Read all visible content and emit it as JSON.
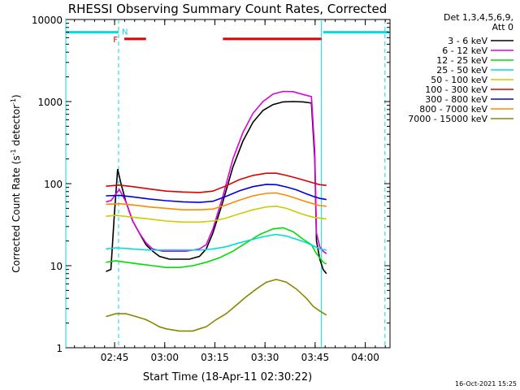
{
  "chart_data": {
    "type": "line",
    "title": "RHESSI Observing Summary Count Rates, Corrected",
    "xlabel": "Start Time (18-Apr-11 02:30:22)",
    "ylabel_main": "Corrected Count Rate (s",
    "ylabel_sup1": "-1",
    "ylabel_mid": " detector",
    "ylabel_sup2": "-1",
    "ylabel_end": ")",
    "y_scale": "log",
    "ylim": [
      1,
      10000
    ],
    "xlim_minutes": [
      0,
      97
    ],
    "y_ticks": [
      {
        "v": 1,
        "label": "1"
      },
      {
        "v": 10,
        "label": "10"
      },
      {
        "v": 100,
        "label": "100"
      },
      {
        "v": 1000,
        "label": "1000"
      },
      {
        "v": 10000,
        "label": "10000"
      }
    ],
    "x_ticks": [
      {
        "m": 14.6,
        "label": "02:45"
      },
      {
        "m": 29.6,
        "label": "03:00"
      },
      {
        "m": 44.6,
        "label": "03:15"
      },
      {
        "m": 59.6,
        "label": "03:30"
      },
      {
        "m": 74.6,
        "label": "03:45"
      },
      {
        "m": 89.6,
        "label": "04:00"
      }
    ],
    "legend": {
      "header1": "Det 1,3,4,5,6,9,",
      "header2": "Att 0",
      "placement": "right"
    },
    "series": [
      {
        "name": "3 - 6 keV",
        "color": "#000000",
        "points": [
          [
            12,
            8.5
          ],
          [
            13.5,
            9
          ],
          [
            14.5,
            40
          ],
          [
            15.5,
            150
          ],
          [
            16.5,
            100
          ],
          [
            18,
            60
          ],
          [
            20,
            35
          ],
          [
            22,
            25
          ],
          [
            24,
            18
          ],
          [
            26,
            15
          ],
          [
            28,
            13
          ],
          [
            31,
            12
          ],
          [
            34,
            12
          ],
          [
            37,
            12
          ],
          [
            40,
            13
          ],
          [
            42,
            16
          ],
          [
            44,
            25
          ],
          [
            47,
            60
          ],
          [
            50,
            160
          ],
          [
            53,
            330
          ],
          [
            56,
            560
          ],
          [
            59,
            780
          ],
          [
            62,
            920
          ],
          [
            65,
            990
          ],
          [
            68,
            1000
          ],
          [
            71,
            990
          ],
          [
            73.5,
            960
          ],
          [
            74.5,
            200
          ],
          [
            75,
            20
          ],
          [
            76,
            12
          ],
          [
            77,
            9
          ],
          [
            78,
            8
          ]
        ]
      },
      {
        "name": "6 - 12 keV",
        "color": "#dd00dd",
        "points": [
          [
            12,
            60
          ],
          [
            13.5,
            62
          ],
          [
            14.5,
            70
          ],
          [
            16,
            85
          ],
          [
            18,
            60
          ],
          [
            20,
            35
          ],
          [
            22,
            25
          ],
          [
            24,
            19
          ],
          [
            26,
            16
          ],
          [
            29,
            15
          ],
          [
            32,
            15
          ],
          [
            36,
            15
          ],
          [
            40,
            16
          ],
          [
            42,
            18
          ],
          [
            44,
            28
          ],
          [
            47,
            70
          ],
          [
            50,
            200
          ],
          [
            53,
            420
          ],
          [
            56,
            720
          ],
          [
            59,
            1000
          ],
          [
            62,
            1230
          ],
          [
            65,
            1330
          ],
          [
            68,
            1320
          ],
          [
            71,
            1220
          ],
          [
            73.5,
            1150
          ],
          [
            74.5,
            250
          ],
          [
            75,
            25
          ],
          [
            76,
            17
          ],
          [
            77,
            15
          ],
          [
            78,
            14
          ]
        ]
      },
      {
        "name": "12 - 25 keV",
        "color": "#00dd00",
        "points": [
          [
            12,
            11
          ],
          [
            15,
            11.5
          ],
          [
            18,
            11
          ],
          [
            22,
            10.5
          ],
          [
            26,
            10
          ],
          [
            30,
            9.5
          ],
          [
            34,
            9.5
          ],
          [
            38,
            10
          ],
          [
            42,
            11
          ],
          [
            46,
            12.5
          ],
          [
            50,
            15
          ],
          [
            54,
            19
          ],
          [
            58,
            24
          ],
          [
            62,
            28
          ],
          [
            65,
            29
          ],
          [
            68,
            26
          ],
          [
            71,
            21
          ],
          [
            73.5,
            18
          ],
          [
            75,
            14
          ],
          [
            77,
            11
          ],
          [
            78,
            10.5
          ]
        ]
      },
      {
        "name": "25 - 50 keV",
        "color": "#00dddd",
        "points": [
          [
            12,
            16
          ],
          [
            15,
            16.5
          ],
          [
            20,
            16
          ],
          [
            25,
            15.5
          ],
          [
            30,
            15.5
          ],
          [
            35,
            15.5
          ],
          [
            40,
            15.5
          ],
          [
            44,
            16
          ],
          [
            48,
            17
          ],
          [
            52,
            19
          ],
          [
            56,
            21
          ],
          [
            60,
            23
          ],
          [
            63,
            24
          ],
          [
            66,
            23
          ],
          [
            69,
            21
          ],
          [
            72,
            19
          ],
          [
            74,
            17.5
          ],
          [
            76,
            16
          ],
          [
            78,
            15.5
          ]
        ]
      },
      {
        "name": "50 - 100 keV",
        "color": "#cccc00",
        "points": [
          [
            12,
            40
          ],
          [
            15,
            41
          ],
          [
            20,
            39
          ],
          [
            25,
            37
          ],
          [
            30,
            35
          ],
          [
            35,
            34
          ],
          [
            40,
            34
          ],
          [
            44,
            35
          ],
          [
            48,
            38
          ],
          [
            52,
            43
          ],
          [
            56,
            48
          ],
          [
            60,
            52
          ],
          [
            63,
            53
          ],
          [
            66,
            50
          ],
          [
            69,
            45
          ],
          [
            72,
            41
          ],
          [
            74,
            39
          ],
          [
            76,
            38
          ],
          [
            78,
            37
          ]
        ]
      },
      {
        "name": "100 - 300 keV",
        "color": "#dd0000",
        "points": [
          [
            12,
            93
          ],
          [
            16,
            96
          ],
          [
            20,
            92
          ],
          [
            25,
            86
          ],
          [
            30,
            81
          ],
          [
            35,
            79
          ],
          [
            40,
            78
          ],
          [
            44,
            81
          ],
          [
            48,
            94
          ],
          [
            52,
            112
          ],
          [
            56,
            126
          ],
          [
            60,
            134
          ],
          [
            63,
            134
          ],
          [
            66,
            126
          ],
          [
            69,
            117
          ],
          [
            72,
            108
          ],
          [
            74,
            102
          ],
          [
            76,
            97
          ],
          [
            78,
            95
          ]
        ]
      },
      {
        "name": "300 - 800 keV",
        "color": "#0000dd",
        "points": [
          [
            12,
            71
          ],
          [
            16,
            72
          ],
          [
            20,
            69
          ],
          [
            25,
            65
          ],
          [
            30,
            62
          ],
          [
            35,
            60
          ],
          [
            40,
            59
          ],
          [
            44,
            61
          ],
          [
            48,
            70
          ],
          [
            52,
            82
          ],
          [
            56,
            92
          ],
          [
            60,
            98
          ],
          [
            63,
            97
          ],
          [
            66,
            91
          ],
          [
            69,
            84
          ],
          [
            72,
            75
          ],
          [
            74,
            70
          ],
          [
            76,
            66
          ],
          [
            78,
            64
          ]
        ]
      },
      {
        "name": "800 - 7000 keV",
        "color": "#ff8800",
        "points": [
          [
            12,
            56
          ],
          [
            16,
            57
          ],
          [
            20,
            55
          ],
          [
            25,
            52
          ],
          [
            30,
            50
          ],
          [
            35,
            48
          ],
          [
            40,
            48
          ],
          [
            44,
            49
          ],
          [
            48,
            55
          ],
          [
            52,
            63
          ],
          [
            56,
            71
          ],
          [
            60,
            76
          ],
          [
            63,
            77
          ],
          [
            66,
            72
          ],
          [
            69,
            66
          ],
          [
            72,
            60
          ],
          [
            74,
            57
          ],
          [
            76,
            54
          ],
          [
            78,
            53
          ]
        ]
      },
      {
        "name": "7000 - 15000 keV",
        "color": "#888800",
        "points": [
          [
            12,
            2.4
          ],
          [
            15,
            2.6
          ],
          [
            18,
            2.6
          ],
          [
            21,
            2.4
          ],
          [
            24,
            2.2
          ],
          [
            26,
            2.0
          ],
          [
            28,
            1.8
          ],
          [
            30,
            1.7
          ],
          [
            34,
            1.6
          ],
          [
            38,
            1.6
          ],
          [
            40,
            1.7
          ],
          [
            42,
            1.8
          ],
          [
            45,
            2.2
          ],
          [
            48,
            2.6
          ],
          [
            51,
            3.3
          ],
          [
            54,
            4.2
          ],
          [
            57,
            5.2
          ],
          [
            60,
            6.3
          ],
          [
            63,
            6.8
          ],
          [
            66,
            6.3
          ],
          [
            69,
            5.2
          ],
          [
            72,
            4.0
          ],
          [
            74,
            3.2
          ],
          [
            76,
            2.8
          ],
          [
            78,
            2.5
          ]
        ]
      }
    ],
    "flags": {
      "F_label": "F",
      "N_label": "N",
      "saa_segments": [
        [
          0,
          15.8
        ],
        [
          77,
          97
        ]
      ],
      "flare_segments": [
        [
          17.5,
          24
        ],
        [
          47,
          76.5
        ]
      ],
      "cyan_solid_verticals": [
        0,
        76.5
      ],
      "cyan_dashed_verticals": [
        15.8,
        95.5
      ]
    }
  },
  "footer": {
    "timestamp": "16-Oct-2021 15:25"
  }
}
